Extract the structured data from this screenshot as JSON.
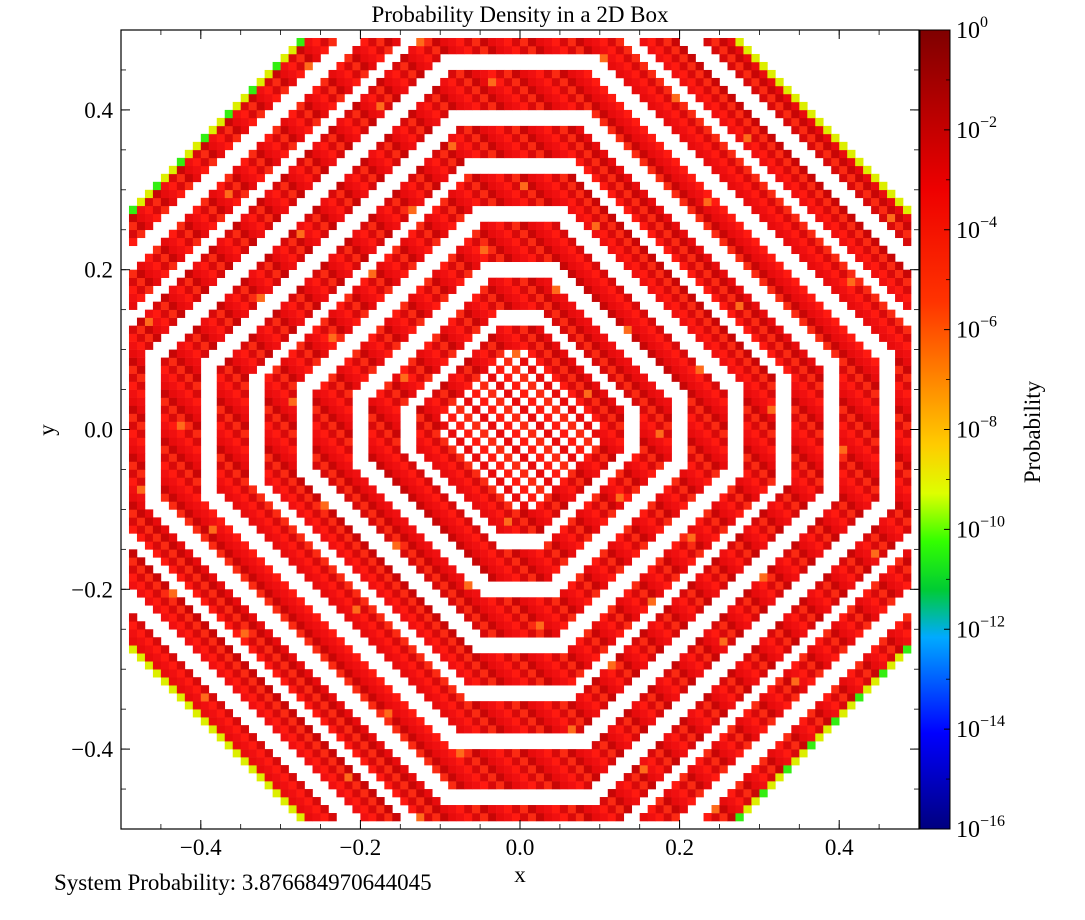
{
  "chart_data": {
    "type": "heatmap",
    "title": "Probability Density in a 2D Box",
    "xlabel": "x",
    "ylabel": "y",
    "xlim": [
      -0.5,
      0.5
    ],
    "ylim": [
      -0.5,
      0.5
    ],
    "x_ticks": [
      -0.4,
      -0.2,
      0.0,
      0.2,
      0.4
    ],
    "y_ticks": [
      -0.4,
      -0.2,
      0.0,
      0.2,
      0.4
    ],
    "x_tick_labels": [
      "−0.4",
      "−0.2",
      "0.0",
      "0.2",
      "0.4"
    ],
    "y_tick_labels": [
      "−0.4",
      "−0.2",
      "0.0",
      "0.2",
      "0.4"
    ],
    "grid_cells": 100,
    "pattern": "octagonal concentric bands; values mostly near 1e-4, edge cells toward 1e-11, white gaps are zero",
    "colorbar": {
      "label": "Probability",
      "scale": "log",
      "exponent_range": [
        -16,
        0
      ],
      "tick_exponents": [
        0,
        -2,
        -4,
        -6,
        -8,
        -10,
        -12,
        -14,
        -16
      ],
      "tick_labels": [
        "10",
        "10",
        "10",
        "10",
        "10",
        "10",
        "10",
        "10",
        "10"
      ],
      "tick_superscripts": [
        "0",
        "−2",
        "−4",
        "−6",
        "−8",
        "−10",
        "−12",
        "−14",
        "−16"
      ],
      "colormap": "jet-like (dark blue → blue → green → yellow → orange → red → dark red)"
    },
    "colors": {
      "band": "#f01010",
      "edge_green": "#33ee11",
      "edge_yellow": "#ddee00",
      "gap": "#ffffff"
    }
  },
  "footer": {
    "system_probability": "System Probability: 3.876684970644045"
  }
}
